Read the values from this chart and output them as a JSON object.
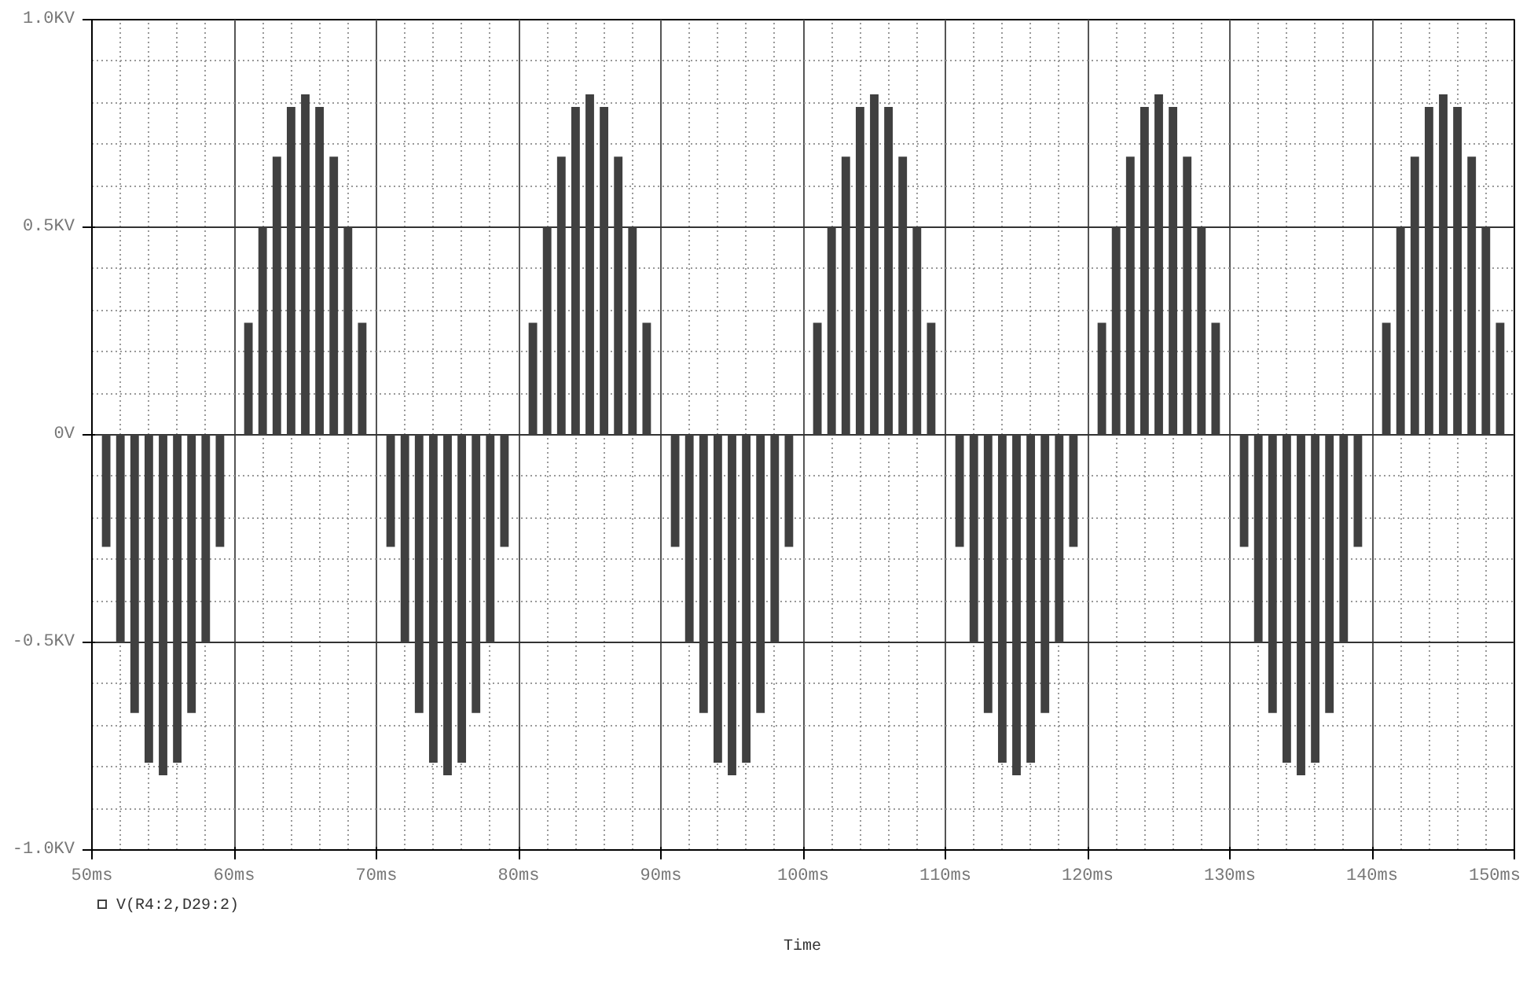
{
  "chart_data": {
    "type": "bar",
    "xlabel": "Time",
    "x": [
      50,
      51,
      52,
      53,
      54,
      55,
      56,
      57,
      58,
      59,
      60,
      61,
      62,
      63,
      64,
      65,
      66,
      67,
      68,
      69,
      70,
      71,
      72,
      73,
      74,
      75,
      76,
      77,
      78,
      79,
      80,
      81,
      82,
      83,
      84,
      85,
      86,
      87,
      88,
      89,
      90,
      91,
      92,
      93,
      94,
      95,
      96,
      97,
      98,
      99,
      100,
      101,
      102,
      103,
      104,
      105,
      106,
      107,
      108,
      109,
      110,
      111,
      112,
      113,
      114,
      115,
      116,
      117,
      118,
      119,
      120,
      121,
      122,
      123,
      124,
      125,
      126,
      127,
      128,
      129,
      130,
      131,
      132,
      133,
      134,
      135,
      136,
      137,
      138,
      139,
      140,
      141,
      142,
      143,
      144,
      145,
      146,
      147,
      148,
      149,
      150
    ],
    "series": [
      {
        "name": "V(R4:2,D29:2)",
        "color": "#404040",
        "values": [
          0,
          -0.27,
          -0.5,
          -0.67,
          -0.79,
          -0.82,
          -0.79,
          -0.67,
          -0.5,
          -0.27,
          0,
          0.27,
          0.5,
          0.67,
          0.79,
          0.82,
          0.79,
          0.67,
          0.5,
          0.27,
          0,
          -0.27,
          -0.5,
          -0.67,
          -0.79,
          -0.82,
          -0.79,
          -0.67,
          -0.5,
          -0.27,
          0,
          0.27,
          0.5,
          0.67,
          0.79,
          0.82,
          0.79,
          0.67,
          0.5,
          0.27,
          0,
          -0.27,
          -0.5,
          -0.67,
          -0.79,
          -0.82,
          -0.79,
          -0.67,
          -0.5,
          -0.27,
          0,
          0.27,
          0.5,
          0.67,
          0.79,
          0.82,
          0.79,
          0.67,
          0.5,
          0.27,
          0,
          -0.27,
          -0.5,
          -0.67,
          -0.79,
          -0.82,
          -0.79,
          -0.67,
          -0.5,
          -0.27,
          0,
          0.27,
          0.5,
          0.67,
          0.79,
          0.82,
          0.79,
          0.67,
          0.5,
          0.27,
          0,
          -0.27,
          -0.5,
          -0.67,
          -0.79,
          -0.82,
          -0.79,
          -0.67,
          -0.5,
          -0.27,
          0,
          0.27,
          0.5,
          0.67,
          0.79,
          0.82,
          0.79,
          0.67,
          0.5,
          0.27,
          0
        ]
      }
    ],
    "xlim": [
      50,
      150
    ],
    "xticks": [
      {
        "value": 50,
        "label": "50ms"
      },
      {
        "value": 60,
        "label": "60ms"
      },
      {
        "value": 70,
        "label": "70ms"
      },
      {
        "value": 80,
        "label": "80ms"
      },
      {
        "value": 90,
        "label": "90ms"
      },
      {
        "value": 100,
        "label": "100ms"
      },
      {
        "value": 110,
        "label": "110ms"
      },
      {
        "value": 120,
        "label": "120ms"
      },
      {
        "value": 130,
        "label": "130ms"
      },
      {
        "value": 140,
        "label": "140ms"
      },
      {
        "value": 150,
        "label": "150ms"
      }
    ],
    "ylim": [
      -1.0,
      1.0
    ],
    "yticks": [
      {
        "value": -1.0,
        "label": "-1.0KV"
      },
      {
        "value": -0.5,
        "label": "-0.5KV"
      },
      {
        "value": 0,
        "label": "0V"
      },
      {
        "value": 0.5,
        "label": "0.5KV"
      },
      {
        "value": 1.0,
        "label": "1.0KV"
      }
    ],
    "grid": true,
    "legend": "bottom left"
  }
}
